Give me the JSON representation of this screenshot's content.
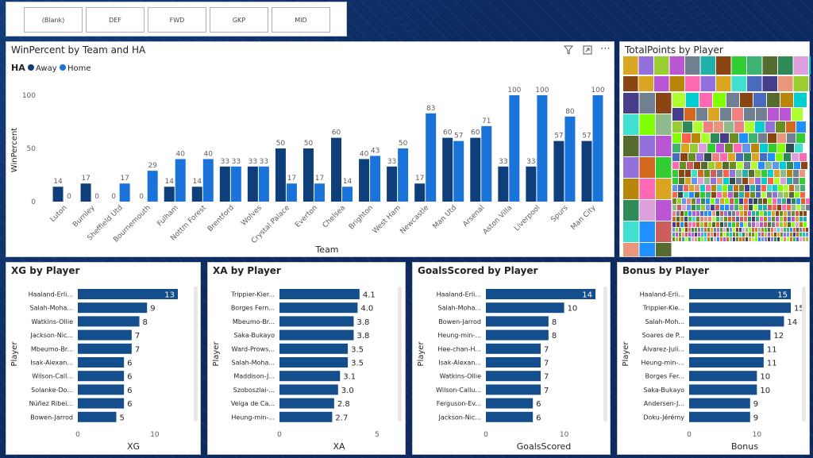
{
  "slicer": {
    "items": [
      "(Blank)",
      "DEF",
      "FWD",
      "GKP",
      "MID"
    ]
  },
  "colors": {
    "away": "#0f3f7a",
    "home": "#1a73d9",
    "bar": "#154e8c"
  },
  "main": {
    "title": "WinPercent by Team and HA",
    "legend_title": "HA",
    "toolbar": [
      "filter-icon",
      "focus-mode-icon",
      "more-options-icon"
    ],
    "chart_data": {
      "type": "bar",
      "title": "WinPercent by Team and HA",
      "xlabel": "Team",
      "ylabel": "WinPercent",
      "ylim": [
        0,
        100
      ],
      "yticks": [
        0,
        50,
        100
      ],
      "grid": false,
      "legend": "top-left",
      "categories": [
        "Luton",
        "Burnley",
        "Sheffield Utd",
        "Bournemouth",
        "Fulham",
        "Nottm Forest",
        "Brentford",
        "Wolves",
        "Crystal Palace",
        "Everton",
        "Chelsea",
        "Brighton",
        "West Ham",
        "Newcastle",
        "Man Utd",
        "Arsenal",
        "Aston Villa",
        "Liverpool",
        "Spurs",
        "Man City"
      ],
      "series": [
        {
          "name": "Away",
          "values": [
            14,
            17,
            0,
            0,
            14,
            14,
            33,
            33,
            50,
            50,
            60,
            40,
            33,
            17,
            60,
            60,
            33,
            33,
            57,
            57
          ]
        },
        {
          "name": "Home",
          "values": [
            0,
            0,
            17,
            29,
            40,
            40,
            33,
            33,
            17,
            17,
            14,
            43,
            50,
            83,
            57,
            71,
            100,
            100,
            80,
            100
          ]
        }
      ]
    }
  },
  "treemap": {
    "title": "TotalPoints by Player"
  },
  "xg": {
    "title": "XG by Player",
    "chart_data": {
      "type": "bar",
      "orientation": "horizontal",
      "xlabel": "XG",
      "ylabel": "Player",
      "xlim": [
        0,
        13
      ],
      "xticks": [
        0,
        10
      ],
      "categories": [
        "Haaland-Erli...",
        "Salah-Moha...",
        "Watkins-Ollie",
        "Jackson-Nic...",
        "Mbeumo-Br...",
        "Isak-Alexan...",
        "Wilson-Call...",
        "Solanke-Do...",
        "Núñez Ribei...",
        "Bowen-Jarrod"
      ],
      "values": [
        13,
        9,
        8,
        7,
        7,
        6,
        6,
        6,
        6,
        5
      ]
    }
  },
  "xa": {
    "title": "XA by Player",
    "chart_data": {
      "type": "bar",
      "orientation": "horizontal",
      "xlabel": "XA",
      "ylabel": "Player",
      "xlim": [
        0,
        5
      ],
      "xticks": [
        0,
        5
      ],
      "categories": [
        "Trippier-Kier...",
        "Borges Fern...",
        "Mbeumo-Br...",
        "Saka-Bukayo",
        "Ward-Prows...",
        "Salah-Moha...",
        "Maddison-J...",
        "Szoboszlai-...",
        "Veiga de Ca...",
        "Heung-min-..."
      ],
      "values": [
        4.1,
        4.0,
        3.8,
        3.8,
        3.5,
        3.5,
        3.1,
        3.0,
        2.8,
        2.7
      ],
      "labels": [
        "4.1",
        "4.0",
        "3.8",
        "3.8",
        "3.5",
        "3.5",
        "3.1",
        "3.0",
        "2.8",
        "2.7"
      ]
    }
  },
  "goals": {
    "title": "GoalsScored by Player",
    "chart_data": {
      "type": "bar",
      "orientation": "horizontal",
      "xlabel": "GoalsScored",
      "ylabel": "Player",
      "xlim": [
        0,
        14
      ],
      "xticks": [
        0,
        10
      ],
      "categories": [
        "Haaland-Erli...",
        "Salah-Moha...",
        "Bowen-Jarrod",
        "Heung-min-...",
        "Hee-chan-H...",
        "Isak-Alexan...",
        "Watkins-Ollie",
        "Wilson-Callu...",
        "Ferguson-Ev...",
        "Jackson-Nic..."
      ],
      "values": [
        14,
        10,
        8,
        8,
        7,
        7,
        7,
        7,
        6,
        6
      ]
    }
  },
  "bonus": {
    "title": "Bonus by Player",
    "chart_data": {
      "type": "bar",
      "orientation": "horizontal",
      "xlabel": "Bonus",
      "ylabel": "Player",
      "xlim": [
        0,
        15
      ],
      "xticks": [
        0,
        10
      ],
      "categories": [
        "Haaland-Erli...",
        "Trippier-Kie...",
        "Salah-Moh...",
        "Soares de P...",
        "Álvarez-Juli...",
        "Heung-min-...",
        "Borges Fer...",
        "Saka-Bukayo",
        "Andersen-J...",
        "Doku-Jérémy"
      ],
      "values": [
        15,
        15,
        14,
        12,
        11,
        11,
        10,
        10,
        9,
        9
      ]
    }
  }
}
